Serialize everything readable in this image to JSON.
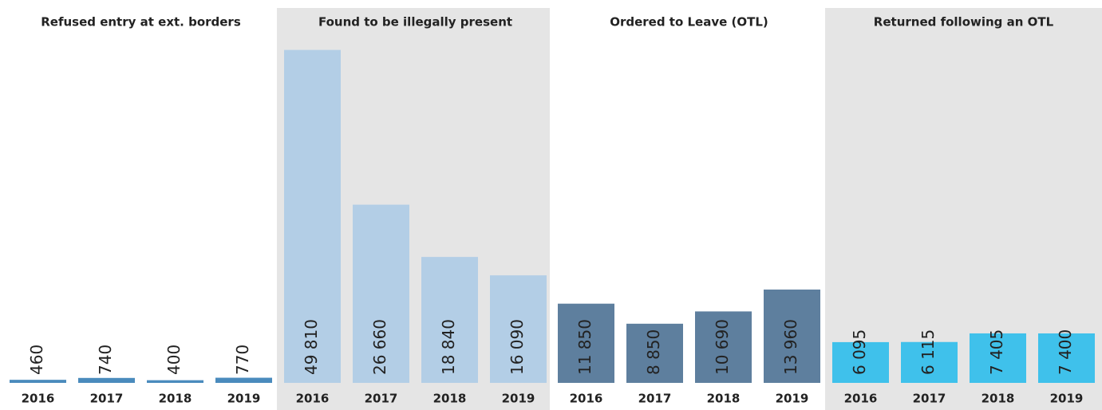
{
  "chart_data": [
    {
      "type": "bar",
      "title": "Refused entry at ext. borders",
      "categories": [
        "2016",
        "2017",
        "2018",
        "2019"
      ],
      "values": [
        460,
        740,
        400,
        770
      ],
      "value_labels": [
        "460",
        "740",
        "400",
        "770"
      ],
      "color": "#4a8bbd",
      "ylim": [
        0,
        50000
      ]
    },
    {
      "type": "bar",
      "title": "Found to be illegally present",
      "categories": [
        "2016",
        "2017",
        "2018",
        "2019"
      ],
      "values": [
        49810,
        26660,
        18840,
        16090
      ],
      "value_labels": [
        "49 810",
        "26 660",
        "18 840",
        "16 090"
      ],
      "color": "#b3cee6",
      "ylim": [
        0,
        50000
      ],
      "background": "#e5e5e5"
    },
    {
      "type": "bar",
      "title": "Ordered to Leave (OTL)",
      "categories": [
        "2016",
        "2017",
        "2018",
        "2019"
      ],
      "values": [
        11850,
        8850,
        10690,
        13960
      ],
      "value_labels": [
        "11 850",
        "8 850",
        "10 690",
        "13 960"
      ],
      "color": "#5e7f9e",
      "ylim": [
        0,
        50000
      ]
    },
    {
      "type": "bar",
      "title": "Returned following an OTL",
      "categories": [
        "2016",
        "2017",
        "2018",
        "2019"
      ],
      "values": [
        6095,
        6115,
        7405,
        7400
      ],
      "value_labels": [
        "6 095",
        "6 115",
        "7 405",
        "7 400"
      ],
      "color": "#3fc1eb",
      "ylim": [
        0,
        50000
      ],
      "background": "#e5e5e5"
    }
  ]
}
